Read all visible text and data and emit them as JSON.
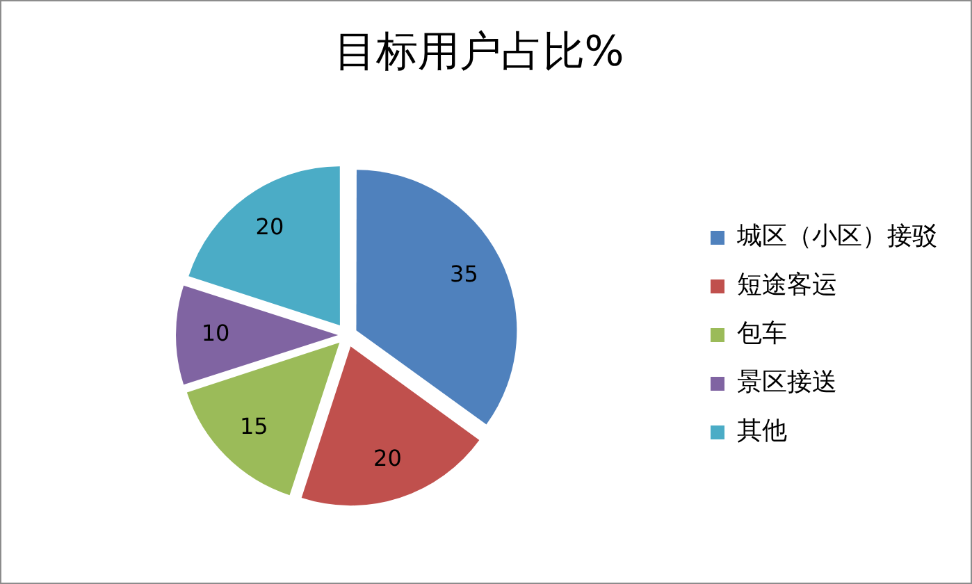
{
  "chart_data": {
    "type": "pie",
    "title": "目标用户占比%",
    "categories": [
      "城区（小区）接驳",
      "短途客运",
      "包车",
      "景区接送",
      "其他"
    ],
    "values": [
      35,
      20,
      15,
      10,
      20
    ],
    "colors": [
      "#4f81bd",
      "#c0504d",
      "#9bbb59",
      "#8064a2",
      "#4bacc6"
    ],
    "data_labels": true,
    "legend": "right"
  }
}
